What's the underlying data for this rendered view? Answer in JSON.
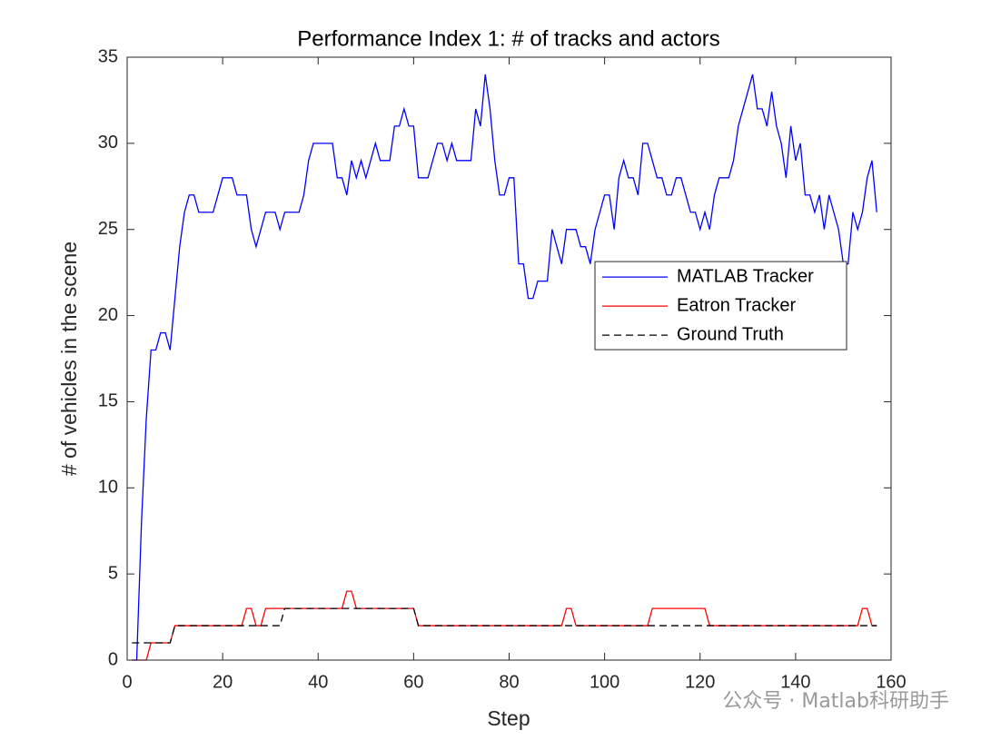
{
  "chart_data": {
    "type": "line",
    "title": "Performance Index 1: # of tracks and actors",
    "x_label": "Step",
    "y_label": "# of vehicles in the scene",
    "x": [
      1,
      2,
      3,
      4,
      5,
      6,
      7,
      8,
      9,
      10,
      11,
      12,
      13,
      14,
      15,
      16,
      17,
      18,
      19,
      20,
      21,
      22,
      23,
      24,
      25,
      26,
      27,
      28,
      29,
      30,
      31,
      32,
      33,
      34,
      35,
      36,
      37,
      38,
      39,
      40,
      41,
      42,
      43,
      44,
      45,
      46,
      47,
      48,
      49,
      50,
      51,
      52,
      53,
      54,
      55,
      56,
      57,
      58,
      59,
      60,
      61,
      62,
      63,
      64,
      65,
      66,
      67,
      68,
      69,
      70,
      71,
      72,
      73,
      74,
      75,
      76,
      77,
      78,
      79,
      80,
      81,
      82,
      83,
      84,
      85,
      86,
      87,
      88,
      89,
      90,
      91,
      92,
      93,
      94,
      95,
      96,
      97,
      98,
      99,
      100,
      101,
      102,
      103,
      104,
      105,
      106,
      107,
      108,
      109,
      110,
      111,
      112,
      113,
      114,
      115,
      116,
      117,
      118,
      119,
      120,
      121,
      122,
      123,
      124,
      125,
      126,
      127,
      128,
      129,
      130,
      131,
      132,
      133,
      134,
      135,
      136,
      137,
      138,
      139,
      140,
      141,
      142,
      143,
      144,
      145,
      146,
      147,
      148,
      149,
      150,
      151,
      152,
      153,
      154,
      155,
      156,
      157
    ],
    "series": [
      {
        "name": "MATLAB Tracker",
        "color": "#0000ff",
        "linestyle": "solid",
        "values": [
          0,
          0,
          8,
          14,
          18,
          18,
          19,
          19,
          18,
          21,
          24,
          26,
          27,
          27,
          26,
          26,
          26,
          26,
          27,
          28,
          28,
          28,
          27,
          27,
          27,
          25,
          24,
          25,
          26,
          26,
          26,
          25,
          26,
          26,
          26,
          26,
          27,
          29,
          30,
          30,
          30,
          30,
          30,
          28,
          28,
          27,
          29,
          28,
          29,
          28,
          29,
          30,
          29,
          29,
          29,
          31,
          31,
          32,
          31,
          31,
          28,
          28,
          28,
          29,
          30,
          30,
          29,
          30,
          29,
          29,
          29,
          29,
          32,
          31,
          34,
          32,
          29,
          27,
          27,
          28,
          28,
          23,
          23,
          21,
          21,
          22,
          22,
          22,
          25,
          24,
          23,
          25,
          25,
          25,
          24,
          24,
          23,
          25,
          26,
          27,
          27,
          25,
          28,
          29,
          28,
          28,
          27,
          30,
          30,
          29,
          28,
          28,
          27,
          27,
          28,
          28,
          27,
          26,
          26,
          25,
          26,
          25,
          27,
          28,
          28,
          28,
          29,
          31,
          32,
          33,
          34,
          32,
          32,
          31,
          33,
          31,
          30,
          28,
          31,
          29,
          30,
          27,
          27,
          26,
          27,
          25,
          27,
          26,
          25,
          23,
          23,
          26,
          25,
          26,
          28,
          29,
          26
        ]
      },
      {
        "name": "Eatron Tracker",
        "color": "#ff0000",
        "linestyle": "solid",
        "values": [
          0,
          0,
          0,
          0,
          1,
          1,
          1,
          1,
          1,
          2,
          2,
          2,
          2,
          2,
          2,
          2,
          2,
          2,
          2,
          2,
          2,
          2,
          2,
          2,
          3,
          3,
          2,
          2,
          3,
          3,
          3,
          3,
          3,
          3,
          3,
          3,
          3,
          3,
          3,
          3,
          3,
          3,
          3,
          3,
          3,
          4,
          4,
          3,
          3,
          3,
          3,
          3,
          3,
          3,
          3,
          3,
          3,
          3,
          3,
          3,
          2,
          2,
          2,
          2,
          2,
          2,
          2,
          2,
          2,
          2,
          2,
          2,
          2,
          2,
          2,
          2,
          2,
          2,
          2,
          2,
          2,
          2,
          2,
          2,
          2,
          2,
          2,
          2,
          2,
          2,
          2,
          3,
          3,
          2,
          2,
          2,
          2,
          2,
          2,
          2,
          2,
          2,
          2,
          2,
          2,
          2,
          2,
          2,
          2,
          3,
          3,
          3,
          3,
          3,
          3,
          3,
          3,
          3,
          3,
          3,
          3,
          2,
          2,
          2,
          2,
          2,
          2,
          2,
          2,
          2,
          2,
          2,
          2,
          2,
          2,
          2,
          2,
          2,
          2,
          2,
          2,
          2,
          2,
          2,
          2,
          2,
          2,
          2,
          2,
          2,
          2,
          2,
          2,
          3,
          3,
          2,
          2
        ]
      },
      {
        "name": "Ground Truth",
        "color": "#000000",
        "linestyle": "dashed",
        "values": [
          1,
          1,
          1,
          1,
          1,
          1,
          1,
          1,
          1,
          2,
          2,
          2,
          2,
          2,
          2,
          2,
          2,
          2,
          2,
          2,
          2,
          2,
          2,
          2,
          2,
          2,
          2,
          2,
          2,
          2,
          2,
          2,
          3,
          3,
          3,
          3,
          3,
          3,
          3,
          3,
          3,
          3,
          3,
          3,
          3,
          3,
          3,
          3,
          3,
          3,
          3,
          3,
          3,
          3,
          3,
          3,
          3,
          3,
          3,
          3,
          2,
          2,
          2,
          2,
          2,
          2,
          2,
          2,
          2,
          2,
          2,
          2,
          2,
          2,
          2,
          2,
          2,
          2,
          2,
          2,
          2,
          2,
          2,
          2,
          2,
          2,
          2,
          2,
          2,
          2,
          2,
          2,
          2,
          2,
          2,
          2,
          2,
          2,
          2,
          2,
          2,
          2,
          2,
          2,
          2,
          2,
          2,
          2,
          2,
          2,
          2,
          2,
          2,
          2,
          2,
          2,
          2,
          2,
          2,
          2,
          2,
          2,
          2,
          2,
          2,
          2,
          2,
          2,
          2,
          2,
          2,
          2,
          2,
          2,
          2,
          2,
          2,
          2,
          2,
          2,
          2,
          2,
          2,
          2,
          2,
          2,
          2,
          2,
          2,
          2,
          2,
          2,
          2,
          2,
          2,
          2,
          2
        ]
      }
    ],
    "xlim": [
      0,
      160
    ],
    "xticks": [
      0,
      20,
      40,
      60,
      80,
      100,
      120,
      140,
      160
    ],
    "ylim": [
      0,
      35
    ],
    "yticks": [
      0,
      5,
      10,
      15,
      20,
      25,
      30,
      35
    ],
    "grid": false,
    "legend": "center right"
  },
  "watermark": "公众号 · Matlab科研助手"
}
